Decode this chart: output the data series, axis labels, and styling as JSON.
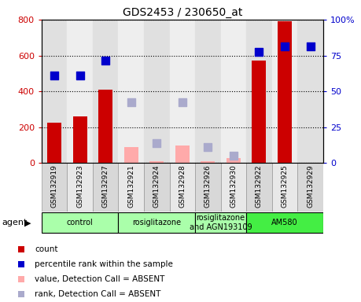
{
  "title": "GDS2453 / 230650_at",
  "samples": [
    "GSM132919",
    "GSM132923",
    "GSM132927",
    "GSM132921",
    "GSM132924",
    "GSM132928",
    "GSM132926",
    "GSM132930",
    "GSM132922",
    "GSM132925",
    "GSM132929"
  ],
  "count_values": [
    225,
    260,
    410,
    null,
    null,
    null,
    null,
    null,
    570,
    790,
    null
  ],
  "rank_values": [
    490,
    490,
    570,
    null,
    null,
    null,
    null,
    null,
    620,
    650,
    650
  ],
  "absent_count_values": [
    null,
    null,
    null,
    90,
    10,
    100,
    10,
    30,
    null,
    null,
    null
  ],
  "absent_rank_values": [
    null,
    null,
    null,
    340,
    110,
    340,
    90,
    40,
    null,
    null,
    null
  ],
  "count_color": "#cc0000",
  "rank_color": "#0000cc",
  "absent_count_color": "#ffaaaa",
  "absent_rank_color": "#aaaacc",
  "ylim_left": [
    0,
    800
  ],
  "ylim_right": [
    0,
    100
  ],
  "yticks_left": [
    0,
    200,
    400,
    600,
    800
  ],
  "yticks_right": [
    0,
    25,
    50,
    75,
    100
  ],
  "yticklabels_right": [
    "0",
    "25",
    "50",
    "75",
    "100%"
  ],
  "groups": [
    {
      "label": "control",
      "start": 0,
      "end": 2,
      "color": "#aaffaa"
    },
    {
      "label": "rosiglitazone",
      "start": 3,
      "end": 5,
      "color": "#aaffaa"
    },
    {
      "label": "rosiglitazone\nand AGN193109",
      "start": 6,
      "end": 7,
      "color": "#aaffaa"
    },
    {
      "label": "AM580",
      "start": 8,
      "end": 10,
      "color": "#44ee44"
    }
  ],
  "bar_width": 0.55,
  "rank_marker_size": 45,
  "legend_items": [
    {
      "label": "count",
      "color": "#cc0000"
    },
    {
      "label": "percentile rank within the sample",
      "color": "#0000cc"
    },
    {
      "label": "value, Detection Call = ABSENT",
      "color": "#ffaaaa"
    },
    {
      "label": "rank, Detection Call = ABSENT",
      "color": "#aaaacc"
    }
  ]
}
